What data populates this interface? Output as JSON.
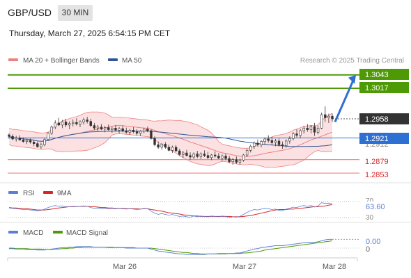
{
  "header": {
    "symbol": "GBP/USD",
    "timeframe": "30 MIN",
    "datetime": "Thursday, March 27, 2025 6:54:15 PM CET"
  },
  "colors": {
    "bollinger": "#f08080",
    "bollinger_fill": "#fbe1e1",
    "ma50": "#2f5597",
    "resistance": "#4e9a06",
    "support": "#f08080",
    "current": "#333333",
    "pivot": "#2d6fd2",
    "rsi": "#5b7fd6",
    "ma9": "#d62728",
    "macd": "#5b7fd6",
    "macd_signal": "#4e9a06",
    "up_candle": "#ffffff",
    "down_candle": "#333333"
  },
  "legend": {
    "bollinger_label": "MA 20 + Bollinger Bands",
    "ma50_label": "MA 50",
    "copyright": "Research © 2025 Trading Central"
  },
  "price_labels": {
    "target2": "1.3043",
    "target1": "1.3017",
    "current": "1.2958",
    "pivot": "1.2921",
    "pivot_overlap": "1.2912",
    "support1": "1.2879",
    "support2": "1.2853"
  },
  "rsi_panel": {
    "rsi_label": "RSI",
    "ma9_label": "9MA",
    "value_label": "63.60",
    "level_upper": "70",
    "level_lower": "30"
  },
  "macd_panel": {
    "macd_label": "MACD",
    "signal_label": "MACD Signal",
    "value_label": "0.00",
    "zero_label": "0"
  },
  "time_axis": {
    "labels": [
      "Mar 26",
      "Mar 27",
      "Mar 28"
    ]
  },
  "chart_data": {
    "type": "candlestick",
    "price_axis_range": [
      1.2845,
      1.3048
    ],
    "horizontal_levels": {
      "resistance": [
        1.3043,
        1.3017
      ],
      "current": 1.2958,
      "pivot": 1.2921,
      "support": [
        1.2879,
        1.2853
      ]
    },
    "arrow": {
      "from": 1.2952,
      "to": 1.3043
    },
    "candles": [
      [
        1.2927,
        1.293,
        1.292,
        1.2924
      ],
      [
        1.2924,
        1.2928,
        1.2917,
        1.2919
      ],
      [
        1.2919,
        1.2925,
        1.2914,
        1.2921
      ],
      [
        1.2921,
        1.2926,
        1.2916,
        1.2917
      ],
      [
        1.2917,
        1.2922,
        1.2912,
        1.2914
      ],
      [
        1.2914,
        1.2918,
        1.2909,
        1.2916
      ],
      [
        1.2916,
        1.292,
        1.291,
        1.2913
      ],
      [
        1.2913,
        1.2917,
        1.2905,
        1.291
      ],
      [
        1.291,
        1.2914,
        1.2902,
        1.2904
      ],
      [
        1.2904,
        1.2912,
        1.29,
        1.2908
      ],
      [
        1.2908,
        1.292,
        1.2905,
        1.2918
      ],
      [
        1.2918,
        1.2932,
        1.2915,
        1.293
      ],
      [
        1.293,
        1.2945,
        1.2927,
        1.2942
      ],
      [
        1.2942,
        1.2955,
        1.2938,
        1.295
      ],
      [
        1.295,
        1.296,
        1.2944,
        1.2946
      ],
      [
        1.2946,
        1.2956,
        1.294,
        1.2952
      ],
      [
        1.2952,
        1.2958,
        1.2942,
        1.2946
      ],
      [
        1.2946,
        1.2953,
        1.2938,
        1.2949
      ],
      [
        1.2949,
        1.2957,
        1.2943,
        1.2951
      ],
      [
        1.2951,
        1.2959,
        1.2945,
        1.2948
      ],
      [
        1.2948,
        1.2955,
        1.2942,
        1.2952
      ],
      [
        1.2952,
        1.296,
        1.2947,
        1.2956
      ],
      [
        1.2956,
        1.2962,
        1.2949,
        1.2953
      ],
      [
        1.2953,
        1.2958,
        1.2942,
        1.2945
      ],
      [
        1.2945,
        1.295,
        1.2936,
        1.294
      ],
      [
        1.294,
        1.2946,
        1.2933,
        1.2942
      ],
      [
        1.2942,
        1.2948,
        1.2936,
        1.2938
      ],
      [
        1.2938,
        1.2944,
        1.2932,
        1.2941
      ],
      [
        1.2941,
        1.2947,
        1.2935,
        1.2937
      ],
      [
        1.2937,
        1.2943,
        1.2931,
        1.294
      ],
      [
        1.294,
        1.2946,
        1.2934,
        1.2936
      ],
      [
        1.2936,
        1.2942,
        1.293,
        1.2939
      ],
      [
        1.2939,
        1.2945,
        1.2932,
        1.2935
      ],
      [
        1.2935,
        1.2941,
        1.2929,
        1.2932
      ],
      [
        1.2932,
        1.2939,
        1.2927,
        1.2936
      ],
      [
        1.2936,
        1.2942,
        1.293,
        1.2933
      ],
      [
        1.2933,
        1.2938,
        1.2926,
        1.293
      ],
      [
        1.293,
        1.2936,
        1.2925,
        1.2934
      ],
      [
        1.2934,
        1.294,
        1.293,
        1.2938
      ],
      [
        1.2938,
        1.2943,
        1.2932,
        1.2935
      ],
      [
        1.2935,
        1.2938,
        1.2918,
        1.292
      ],
      [
        1.292,
        1.2924,
        1.2905,
        1.2908
      ],
      [
        1.2908,
        1.2914,
        1.29,
        1.2903
      ],
      [
        1.2903,
        1.2911,
        1.2898,
        1.2909
      ],
      [
        1.2909,
        1.2913,
        1.29,
        1.2903
      ],
      [
        1.2903,
        1.2908,
        1.2895,
        1.2897
      ],
      [
        1.2897,
        1.2906,
        1.2892,
        1.2903
      ],
      [
        1.2903,
        1.2907,
        1.2894,
        1.2896
      ],
      [
        1.2896,
        1.29,
        1.2886,
        1.2889
      ],
      [
        1.2889,
        1.2896,
        1.2882,
        1.2892
      ],
      [
        1.2892,
        1.2898,
        1.2885,
        1.2887
      ],
      [
        1.2887,
        1.2893,
        1.2879,
        1.2884
      ],
      [
        1.2884,
        1.2893,
        1.288,
        1.289
      ],
      [
        1.289,
        1.2896,
        1.2882,
        1.2885
      ],
      [
        1.2885,
        1.2893,
        1.288,
        1.289
      ],
      [
        1.289,
        1.2897,
        1.2884,
        1.2887
      ],
      [
        1.2887,
        1.2894,
        1.288,
        1.2883
      ],
      [
        1.2883,
        1.289,
        1.2878,
        1.2888
      ],
      [
        1.2888,
        1.2895,
        1.2883,
        1.2886
      ],
      [
        1.2886,
        1.2892,
        1.288,
        1.2882
      ],
      [
        1.2882,
        1.2889,
        1.2877,
        1.2886
      ],
      [
        1.2886,
        1.2891,
        1.2878,
        1.2881
      ],
      [
        1.2881,
        1.2886,
        1.2872,
        1.2875
      ],
      [
        1.2875,
        1.2882,
        1.2869,
        1.2879
      ],
      [
        1.2879,
        1.2885,
        1.2871,
        1.2874
      ],
      [
        1.2874,
        1.2881,
        1.2869,
        1.2878
      ],
      [
        1.2878,
        1.289,
        1.2875,
        1.2888
      ],
      [
        1.2888,
        1.29,
        1.2884,
        1.2897
      ],
      [
        1.2897,
        1.2908,
        1.2893,
        1.2905
      ],
      [
        1.2905,
        1.2914,
        1.29,
        1.2911
      ],
      [
        1.2911,
        1.2918,
        1.2904,
        1.2908
      ],
      [
        1.2908,
        1.2917,
        1.2903,
        1.2914
      ],
      [
        1.2914,
        1.2922,
        1.2908,
        1.2919
      ],
      [
        1.2919,
        1.2926,
        1.2912,
        1.2916
      ],
      [
        1.2916,
        1.2923,
        1.2908,
        1.2912
      ],
      [
        1.2912,
        1.2919,
        1.2905,
        1.2915
      ],
      [
        1.2915,
        1.292,
        1.2904,
        1.2908
      ],
      [
        1.2908,
        1.2914,
        1.29,
        1.2906
      ],
      [
        1.2906,
        1.2918,
        1.2902,
        1.2915
      ],
      [
        1.2915,
        1.2924,
        1.291,
        1.292
      ],
      [
        1.292,
        1.2932,
        1.2916,
        1.2929
      ],
      [
        1.2929,
        1.2938,
        1.2922,
        1.2926
      ],
      [
        1.2926,
        1.2938,
        1.2921,
        1.2935
      ],
      [
        1.2935,
        1.2944,
        1.2929,
        1.294
      ],
      [
        1.294,
        1.2948,
        1.2933,
        1.2937
      ],
      [
        1.2937,
        1.2946,
        1.293,
        1.2943
      ],
      [
        1.2943,
        1.295,
        1.2925,
        1.2932
      ],
      [
        1.2932,
        1.2945,
        1.2928,
        1.294
      ],
      [
        1.294,
        1.297,
        1.2938,
        1.2966
      ],
      [
        1.2966,
        1.2982,
        1.2952,
        1.296
      ],
      [
        1.296,
        1.2968,
        1.295,
        1.2963
      ],
      [
        1.2963,
        1.2968,
        1.2952,
        1.2958
      ]
    ],
    "rsi": [
      54,
      53,
      52,
      51,
      50,
      50,
      49,
      48,
      47,
      48,
      51,
      55,
      58,
      60,
      58,
      59,
      57,
      57,
      58,
      57,
      58,
      59,
      58,
      55,
      53,
      54,
      52,
      53,
      52,
      53,
      52,
      53,
      52,
      51,
      52,
      51,
      50,
      51,
      53,
      52,
      46,
      41,
      38,
      40,
      38,
      36,
      38,
      35,
      33,
      34,
      32,
      31,
      34,
      32,
      34,
      33,
      32,
      34,
      33,
      32,
      34,
      33,
      30,
      32,
      31,
      33,
      38,
      43,
      47,
      50,
      49,
      51,
      53,
      52,
      50,
      51,
      48,
      47,
      51,
      53,
      56,
      55,
      58,
      60,
      58,
      60,
      56,
      59,
      67,
      65,
      66,
      64
    ],
    "rsi_ma9": [
      55,
      54,
      54,
      53,
      52,
      52,
      51,
      50,
      49,
      49,
      49,
      50,
      51,
      53,
      54,
      55,
      56,
      57,
      57,
      57,
      58,
      58,
      58,
      57,
      57,
      56,
      55,
      55,
      54,
      54,
      53,
      53,
      53,
      52,
      52,
      52,
      52,
      51,
      52,
      52,
      50,
      49,
      47,
      46,
      44,
      42,
      41,
      40,
      39,
      37,
      36,
      35,
      34,
      34,
      33,
      33,
      33,
      33,
      33,
      33,
      33,
      33,
      33,
      32,
      32,
      32,
      33,
      34,
      35,
      37,
      39,
      41,
      43,
      45,
      47,
      49,
      50,
      50,
      50,
      51,
      51,
      52,
      53,
      54,
      55,
      56,
      57,
      57,
      58,
      59,
      61,
      62
    ],
    "macd": [
      -0.0001,
      -0.0001,
      -0.0002,
      -0.0002,
      -0.0002,
      -0.0003,
      -0.0003,
      -0.0003,
      -0.0004,
      -0.0004,
      -0.0004,
      -0.0003,
      -0.0002,
      -0.0001,
      0.0,
      0.0001,
      0.0001,
      0.0002,
      0.0002,
      0.0003,
      0.0003,
      0.0003,
      0.0003,
      0.0003,
      0.0002,
      0.0002,
      0.0002,
      0.0002,
      0.0001,
      0.0001,
      0.0001,
      0.0001,
      0.0001,
      0.0,
      0.0,
      0.0,
      0.0,
      0.0,
      0.0,
      0.0,
      -0.0002,
      -0.0004,
      -0.0006,
      -0.0007,
      -0.0008,
      -0.0009,
      -0.001,
      -0.0011,
      -0.0012,
      -0.0012,
      -0.0013,
      -0.0013,
      -0.0013,
      -0.0013,
      -0.0013,
      -0.0013,
      -0.0012,
      -0.0012,
      -0.0012,
      -0.0011,
      -0.0011,
      -0.0011,
      -0.0011,
      -0.0011,
      -0.001,
      -0.001,
      -0.0008,
      -0.0006,
      -0.0004,
      -0.0002,
      -0.0001,
      0.0001,
      0.0002,
      0.0003,
      0.0004,
      0.0005,
      0.0005,
      0.0005,
      0.0006,
      0.0007,
      0.0008,
      0.0009,
      0.001,
      0.0011,
      0.0012,
      0.0012,
      0.0012,
      0.0013,
      0.0015,
      0.0017,
      0.0018,
      0.0018
    ],
    "macd_signal": [
      0.0,
      0.0,
      -0.0001,
      -0.0001,
      -0.0001,
      -0.0001,
      -0.0002,
      -0.0002,
      -0.0002,
      -0.0002,
      -0.0003,
      -0.0003,
      -0.0003,
      -0.0002,
      -0.0002,
      -0.0001,
      -0.0001,
      0.0,
      0.0,
      0.0001,
      0.0001,
      0.0002,
      0.0002,
      0.0002,
      0.0002,
      0.0002,
      0.0002,
      0.0002,
      0.0002,
      0.0002,
      0.0001,
      0.0001,
      0.0001,
      0.0001,
      0.0001,
      0.0001,
      0.0,
      0.0,
      0.0,
      0.0,
      0.0,
      -0.0001,
      -0.0002,
      -0.0003,
      -0.0004,
      -0.0005,
      -0.0006,
      -0.0007,
      -0.0008,
      -0.0009,
      -0.0009,
      -0.001,
      -0.0011,
      -0.0011,
      -0.0012,
      -0.0012,
      -0.0012,
      -0.0012,
      -0.0012,
      -0.0012,
      -0.0012,
      -0.0012,
      -0.0011,
      -0.0011,
      -0.0011,
      -0.0011,
      -0.001,
      -0.001,
      -0.0009,
      -0.0008,
      -0.0007,
      -0.0006,
      -0.0004,
      -0.0003,
      -0.0002,
      -0.0001,
      0.0,
      0.0001,
      0.0002,
      0.0003,
      0.0004,
      0.0005,
      0.0006,
      0.0007,
      0.0008,
      0.0009,
      0.001,
      0.0011,
      0.0012,
      0.0013,
      0.0014,
      0.0015
    ]
  }
}
